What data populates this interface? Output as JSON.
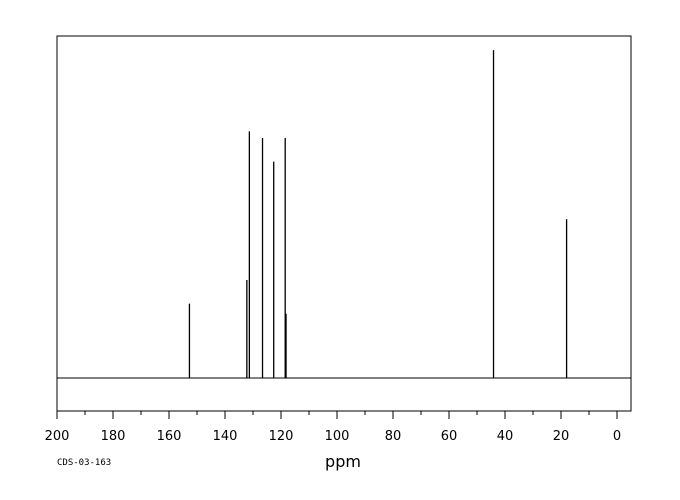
{
  "chart_data": {
    "type": "line",
    "title": "",
    "xlabel": "ppm",
    "ylabel": "",
    "xlim": [
      200,
      -5
    ],
    "x_reversed": true,
    "ylim": [
      0,
      1
    ],
    "grid": false,
    "legend": "none",
    "x_ticks": [
      200,
      180,
      160,
      140,
      120,
      100,
      80,
      60,
      40,
      20,
      0
    ],
    "x_tick_labels": [
      "200",
      "180",
      "160",
      "140",
      "120",
      "100",
      "80",
      "60",
      "40",
      "20",
      "0"
    ],
    "peaks": [
      {
        "ppm": 152.7,
        "intensity": 0.22
      },
      {
        "ppm": 132.2,
        "intensity": 0.29
      },
      {
        "ppm": 131.3,
        "intensity": 0.73
      },
      {
        "ppm": 126.6,
        "intensity": 0.71
      },
      {
        "ppm": 122.6,
        "intensity": 0.64
      },
      {
        "ppm": 118.5,
        "intensity": 0.71
      },
      {
        "ppm": 118.2,
        "intensity": 0.19
      },
      {
        "ppm": 44.1,
        "intensity": 0.97
      },
      {
        "ppm": 18.0,
        "intensity": 0.47
      }
    ],
    "annotations": [
      {
        "text": "CDS-03-163"
      }
    ]
  }
}
